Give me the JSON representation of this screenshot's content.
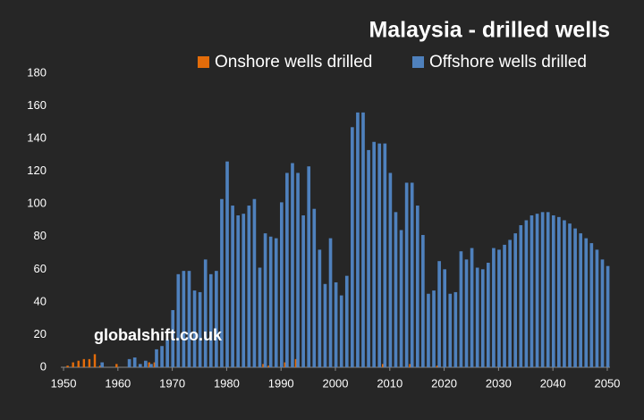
{
  "chart_data": {
    "type": "bar",
    "title": "Malaysia - drilled wells",
    "annotation": "globalshift.co.uk",
    "x": [
      1950,
      1951,
      1952,
      1953,
      1954,
      1955,
      1956,
      1957,
      1958,
      1959,
      1960,
      1961,
      1962,
      1963,
      1964,
      1965,
      1966,
      1967,
      1968,
      1969,
      1970,
      1971,
      1972,
      1973,
      1974,
      1975,
      1976,
      1977,
      1978,
      1979,
      1980,
      1981,
      1982,
      1983,
      1984,
      1985,
      1986,
      1987,
      1988,
      1989,
      1990,
      1991,
      1992,
      1993,
      1994,
      1995,
      1996,
      1997,
      1998,
      1999,
      2000,
      2001,
      2002,
      2003,
      2004,
      2005,
      2006,
      2007,
      2008,
      2009,
      2010,
      2011,
      2012,
      2013,
      2014,
      2015,
      2016,
      2017,
      2018,
      2019,
      2020,
      2021,
      2022,
      2023,
      2024,
      2025,
      2026,
      2027,
      2028,
      2029,
      2030,
      2031,
      2032,
      2033,
      2034,
      2035,
      2036,
      2037,
      2038,
      2039,
      2040,
      2041,
      2042,
      2043,
      2044,
      2045,
      2046,
      2047,
      2048,
      2049,
      2050
    ],
    "series": [
      {
        "name": "Onshore wells drilled",
        "color": "#e36c0a",
        "values": [
          0,
          1,
          3,
          4,
          5,
          5,
          8,
          1,
          0,
          0,
          2,
          0,
          0,
          0,
          0,
          0,
          3,
          3,
          0,
          0,
          0,
          0,
          0,
          0,
          0,
          0,
          0,
          0,
          0,
          0,
          0,
          0,
          0,
          0,
          0,
          0,
          0,
          2,
          1,
          0,
          0,
          3,
          0,
          5,
          0,
          0,
          0,
          0,
          0,
          0,
          0,
          0,
          0,
          0,
          0,
          0,
          0,
          0,
          0,
          2,
          0,
          0,
          0,
          0,
          2,
          0,
          0,
          0,
          0,
          1,
          0,
          0,
          0,
          0,
          0,
          0,
          0,
          0,
          0,
          0,
          0,
          0,
          0,
          0,
          0,
          0,
          0,
          0,
          0,
          0,
          0,
          0,
          0,
          0,
          0,
          0,
          0,
          0,
          0,
          0,
          0
        ]
      },
      {
        "name": "Offshore wells drilled",
        "color": "#4f81bd",
        "values": [
          0,
          0,
          0,
          0,
          0,
          0,
          0,
          3,
          0,
          0,
          0,
          0,
          5,
          6,
          2,
          4,
          2,
          11,
          13,
          17,
          35,
          57,
          59,
          59,
          47,
          46,
          66,
          57,
          59,
          103,
          126,
          99,
          93,
          94,
          99,
          103,
          61,
          82,
          80,
          79,
          101,
          119,
          125,
          119,
          93,
          123,
          97,
          72,
          51,
          79,
          52,
          44,
          56,
          147,
          156,
          156,
          133,
          138,
          137,
          137,
          119,
          95,
          84,
          113,
          113,
          99,
          81,
          45,
          47,
          65,
          60,
          45,
          46,
          71,
          66,
          73,
          61,
          60,
          64,
          73,
          72,
          75,
          78,
          82,
          87,
          90,
          93,
          94,
          95,
          95,
          93,
          92,
          90,
          88,
          85,
          82,
          79,
          76,
          72,
          66,
          62
        ]
      }
    ],
    "xlim": [
      1949.5,
      2050.5
    ],
    "xticks": [
      1950,
      1960,
      1970,
      1980,
      1990,
      2000,
      2010,
      2020,
      2030,
      2040,
      2050
    ],
    "ylim": [
      0,
      180
    ],
    "yticks": [
      0,
      20,
      40,
      60,
      80,
      100,
      120,
      140,
      160,
      180
    ],
    "grid": false
  }
}
